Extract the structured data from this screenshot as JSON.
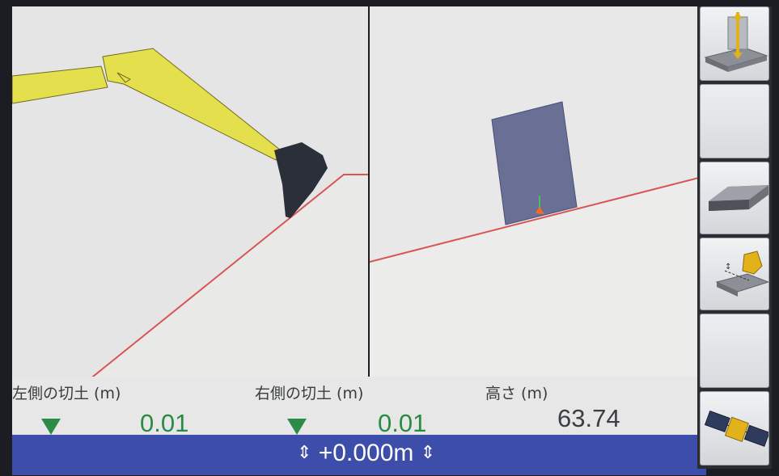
{
  "readouts": {
    "left_cut": {
      "label": "左側の切土 (m)",
      "value": "0.01"
    },
    "right_cut": {
      "label": "右側の切土 (m)",
      "value": "0.01"
    },
    "height": {
      "label": "高さ (m)",
      "value": "63.74"
    }
  },
  "status": {
    "offset": "+0.000m"
  },
  "toolbar": {
    "buttons": [
      {
        "icon": "bucket-elevation-icon"
      },
      {
        "icon": "blank"
      },
      {
        "icon": "design-surface-icon"
      },
      {
        "icon": "bucket-offset-icon"
      },
      {
        "icon": "blank"
      },
      {
        "icon": "gnss-satellite-icon"
      }
    ]
  },
  "colors": {
    "design_line": "#d95555",
    "arm": "#e4df4c",
    "bucket": "#2a2f3a",
    "cut_indicator": "#2d8a48",
    "status_bar": "#3c4ea9"
  }
}
